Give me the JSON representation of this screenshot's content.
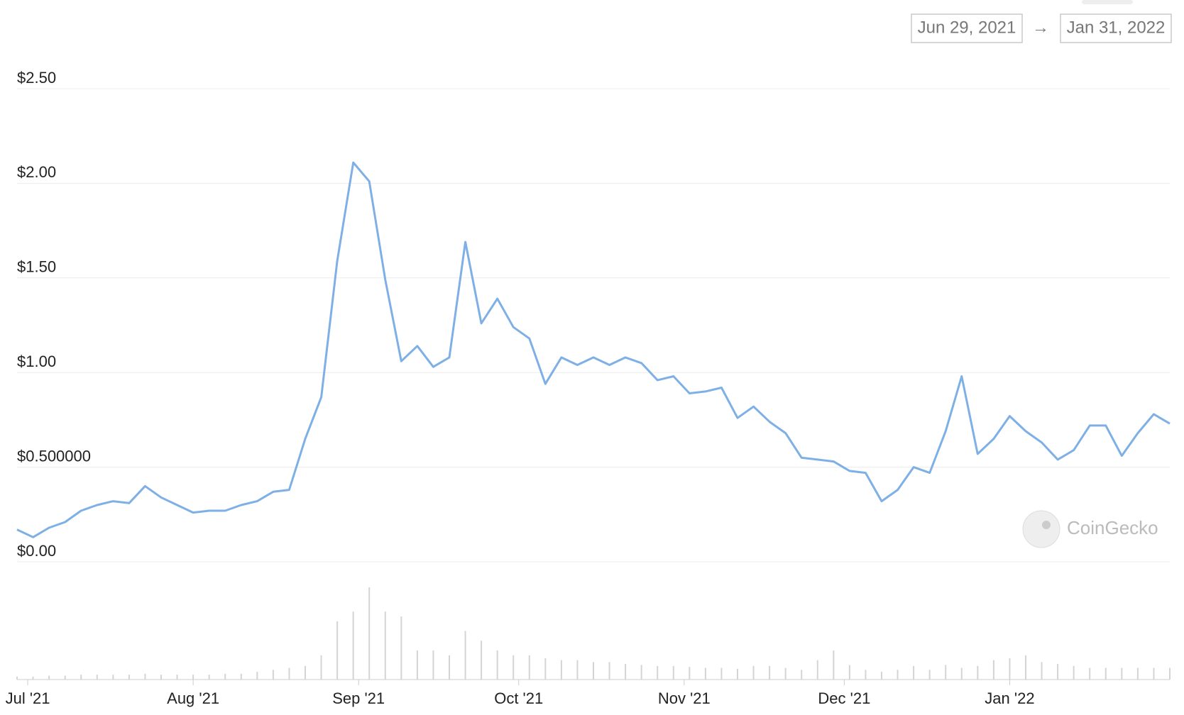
{
  "chart_data": {
    "type": "line",
    "date_range": {
      "start": "Jun 29, 2021",
      "end": "Jan 31, 2022"
    },
    "watermark": "CoinGecko",
    "x": [
      "2021-06-29",
      "2021-07-02",
      "2021-07-05",
      "2021-07-08",
      "2021-07-11",
      "2021-07-14",
      "2021-07-17",
      "2021-07-20",
      "2021-07-23",
      "2021-07-26",
      "2021-07-29",
      "2021-08-01",
      "2021-08-04",
      "2021-08-07",
      "2021-08-10",
      "2021-08-13",
      "2021-08-16",
      "2021-08-19",
      "2021-08-22",
      "2021-08-25",
      "2021-08-28",
      "2021-08-31",
      "2021-09-03",
      "2021-09-06",
      "2021-09-09",
      "2021-09-12",
      "2021-09-15",
      "2021-09-18",
      "2021-09-21",
      "2021-09-24",
      "2021-09-27",
      "2021-09-30",
      "2021-10-03",
      "2021-10-06",
      "2021-10-09",
      "2021-10-12",
      "2021-10-15",
      "2021-10-18",
      "2021-10-21",
      "2021-10-24",
      "2021-10-27",
      "2021-10-30",
      "2021-11-02",
      "2021-11-05",
      "2021-11-08",
      "2021-11-11",
      "2021-11-14",
      "2021-11-17",
      "2021-11-20",
      "2021-11-23",
      "2021-11-26",
      "2021-11-29",
      "2021-12-02",
      "2021-12-05",
      "2021-12-08",
      "2021-12-11",
      "2021-12-14",
      "2021-12-17",
      "2021-12-20",
      "2021-12-23",
      "2021-12-26",
      "2021-12-29",
      "2022-01-01",
      "2022-01-04",
      "2022-01-07",
      "2022-01-10",
      "2022-01-13",
      "2022-01-16",
      "2022-01-19",
      "2022-01-22",
      "2022-01-25",
      "2022-01-28",
      "2022-01-31"
    ],
    "series": [
      {
        "name": "Price",
        "color": "#7eb0e6",
        "values": [
          0.17,
          0.13,
          0.18,
          0.21,
          0.27,
          0.3,
          0.32,
          0.31,
          0.4,
          0.34,
          0.3,
          0.26,
          0.27,
          0.27,
          0.3,
          0.32,
          0.37,
          0.38,
          0.65,
          0.87,
          1.59,
          2.11,
          2.01,
          1.49,
          1.06,
          1.14,
          1.03,
          1.08,
          1.69,
          1.26,
          1.39,
          1.24,
          1.18,
          0.94,
          1.08,
          1.04,
          1.08,
          1.04,
          1.08,
          1.05,
          0.96,
          0.98,
          0.89,
          0.9,
          0.92,
          0.76,
          0.82,
          0.74,
          0.68,
          0.55,
          0.54,
          0.53,
          0.48,
          0.47,
          0.32,
          0.38,
          0.5,
          0.47,
          0.69,
          0.98,
          0.57,
          0.65,
          0.77,
          0.69,
          0.63,
          0.54,
          0.59,
          0.72,
          0.72,
          0.56,
          0.68,
          0.78,
          0.73
        ]
      },
      {
        "name": "Volume",
        "color": "#d4d4d4",
        "values": [
          3,
          3,
          4,
          4,
          5,
          5,
          5,
          5,
          6,
          5,
          5,
          5,
          5,
          6,
          6,
          8,
          10,
          12,
          14,
          25,
          60,
          70,
          95,
          70,
          65,
          30,
          30,
          25,
          50,
          40,
          30,
          25,
          25,
          22,
          20,
          20,
          18,
          18,
          16,
          15,
          14,
          14,
          13,
          12,
          12,
          11,
          14,
          14,
          12,
          10,
          20,
          30,
          15,
          10,
          8,
          10,
          14,
          10,
          15,
          12,
          14,
          20,
          22,
          25,
          18,
          16,
          14,
          12,
          12,
          12,
          12,
          12,
          12
        ]
      }
    ],
    "xlim": [
      "2021-06-29",
      "2022-01-31"
    ],
    "xticks": [
      {
        "value": "2021-07-01",
        "label": "Jul '21"
      },
      {
        "value": "2021-08-01",
        "label": "Aug '21"
      },
      {
        "value": "2021-09-01",
        "label": "Sep '21"
      },
      {
        "value": "2021-10-01",
        "label": "Oct '21"
      },
      {
        "value": "2021-11-01",
        "label": "Nov '21"
      },
      {
        "value": "2021-12-01",
        "label": "Dec '21"
      },
      {
        "value": "2022-01-01",
        "label": "Jan '22"
      }
    ],
    "ylim": [
      0,
      2.5
    ],
    "yticks": [
      {
        "value": 0,
        "label": "$0.00"
      },
      {
        "value": 0.5,
        "label": "$0.500000"
      },
      {
        "value": 1,
        "label": "$1.00"
      },
      {
        "value": 1.5,
        "label": "$1.50"
      },
      {
        "value": 2,
        "label": "$2.00"
      },
      {
        "value": 2.5,
        "label": "$2.50"
      }
    ],
    "grid": true
  }
}
